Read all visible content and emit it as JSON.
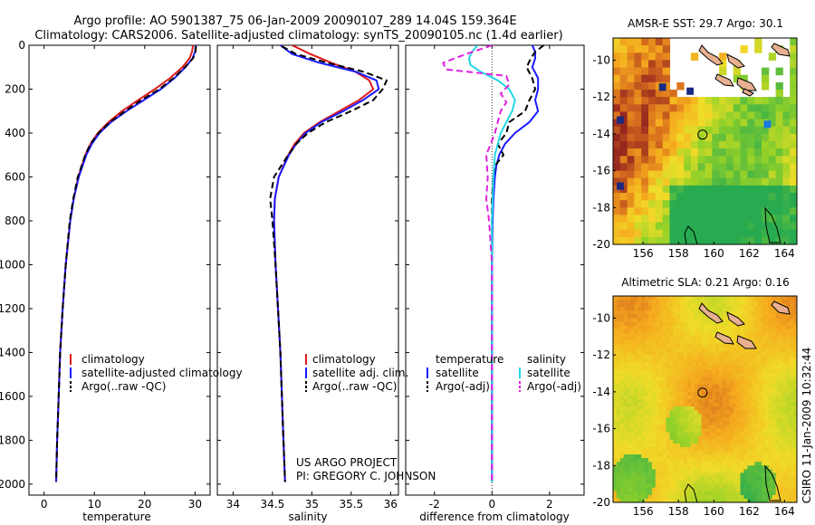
{
  "header": {
    "line1": "Argo profile: AO 5901387_75 06-Jan-2009 20090107_289 14.04S 159.364E",
    "line2": "Climatology: CARS2006. Satellite-adjusted climatology: synTS_20090105.nc (1.4d earlier)"
  },
  "credit": {
    "line1": "US ARGO PROJECT",
    "line2": "PI: GREGORY C. JOHNSON"
  },
  "stamp": "CSIRO 11-Jan-2009 10:32:44",
  "colors": {
    "climatology": "#e01a1a",
    "satellite": "#1a1aff",
    "argo": "#000000",
    "sal_satellite": "#22d8e8",
    "sal_argo": "#e020e0"
  },
  "chart_data": [
    {
      "type": "line",
      "xlabel": "temperature",
      "xlim": [
        -3,
        33
      ],
      "ylim": [
        2050,
        0
      ],
      "xticks": [
        0,
        10,
        20,
        30
      ],
      "yticks": [
        0,
        200,
        400,
        600,
        800,
        1000,
        1200,
        1400,
        1600,
        1800,
        2000
      ],
      "legend": [
        "climatology",
        "satellite-adjusted climatology",
        "Argo(..raw -QC)"
      ],
      "legend_position": "lower-center",
      "series": [
        {
          "name": "climatology",
          "style": "solid",
          "color": "#e01a1a",
          "depth": [
            0,
            30,
            60,
            100,
            150,
            200,
            250,
            300,
            350,
            400,
            450,
            500,
            600,
            700,
            800,
            1000,
            1200,
            1400,
            1600,
            1800,
            1990
          ],
          "values": [
            29.6,
            29.4,
            28.9,
            27.5,
            25.0,
            22.0,
            18.7,
            15.5,
            12.8,
            10.7,
            9.2,
            8.2,
            6.8,
            5.9,
            5.2,
            4.3,
            3.7,
            3.2,
            2.9,
            2.6,
            2.4
          ]
        },
        {
          "name": "satellite-adjusted climatology",
          "style": "solid",
          "color": "#1a1aff",
          "depth": [
            0,
            30,
            60,
            100,
            150,
            200,
            250,
            300,
            350,
            400,
            450,
            500,
            600,
            700,
            800,
            1000,
            1200,
            1400,
            1600,
            1800,
            1990
          ],
          "values": [
            30.2,
            30.0,
            29.5,
            28.1,
            25.9,
            23.2,
            19.8,
            16.4,
            13.3,
            11.0,
            9.5,
            8.4,
            6.9,
            5.9,
            5.2,
            4.3,
            3.7,
            3.2,
            2.9,
            2.6,
            2.4
          ]
        },
        {
          "name": "Argo(..raw -QC)",
          "style": "dashed",
          "color": "#000000",
          "depth": [
            5,
            30,
            60,
            100,
            150,
            200,
            250,
            300,
            350,
            400,
            450,
            500,
            600,
            700,
            800,
            1000,
            1200,
            1400,
            1600,
            1800,
            1990
          ],
          "values": [
            30.2,
            30.1,
            29.6,
            28.0,
            25.7,
            22.9,
            19.3,
            16.1,
            13.1,
            10.8,
            9.2,
            8.2,
            6.7,
            5.8,
            5.1,
            4.3,
            3.7,
            3.2,
            2.9,
            2.6,
            2.4
          ]
        }
      ]
    },
    {
      "type": "line",
      "xlabel": "salinity",
      "xlim": [
        33.8,
        36.1
      ],
      "ylim": [
        2050,
        0
      ],
      "xticks": [
        34,
        34.5,
        35,
        35.5,
        36
      ],
      "legend": [
        "climatology",
        "satellite adj. clim.",
        "Argo(..raw -QC)"
      ],
      "legend_position": "lower-center",
      "series": [
        {
          "name": "climatology",
          "style": "solid",
          "color": "#e01a1a",
          "depth": [
            0,
            40,
            80,
            120,
            160,
            200,
            250,
            300,
            350,
            400,
            450,
            500,
            600,
            700,
            800,
            1000,
            1200,
            1400,
            1600,
            1800,
            1990
          ],
          "values": [
            34.75,
            34.98,
            35.25,
            35.55,
            35.73,
            35.78,
            35.6,
            35.35,
            35.1,
            34.9,
            34.78,
            34.7,
            34.58,
            34.53,
            34.52,
            34.54,
            34.57,
            34.6,
            34.62,
            34.64,
            34.66
          ]
        },
        {
          "name": "satellite adj. clim.",
          "style": "solid",
          "color": "#1a1aff",
          "depth": [
            0,
            40,
            80,
            120,
            160,
            200,
            250,
            300,
            350,
            400,
            450,
            500,
            600,
            700,
            800,
            1000,
            1200,
            1400,
            1600,
            1800,
            1990
          ],
          "values": [
            34.6,
            34.75,
            35.1,
            35.55,
            35.82,
            35.85,
            35.65,
            35.4,
            35.12,
            34.92,
            34.8,
            34.71,
            34.58,
            34.53,
            34.52,
            34.54,
            34.57,
            34.6,
            34.62,
            34.64,
            34.66
          ]
        },
        {
          "name": "Argo(..raw -QC)",
          "style": "dashed",
          "color": "#000000",
          "depth": [
            5,
            40,
            80,
            120,
            160,
            200,
            250,
            300,
            350,
            400,
            450,
            500,
            600,
            700,
            800,
            1000,
            1200,
            1400,
            1600,
            1800,
            1990
          ],
          "values": [
            34.62,
            34.8,
            35.2,
            35.65,
            35.95,
            35.9,
            35.78,
            35.5,
            35.18,
            34.95,
            34.8,
            34.7,
            34.52,
            34.47,
            34.5,
            34.54,
            34.57,
            34.6,
            34.62,
            34.64,
            34.66
          ]
        }
      ]
    },
    {
      "type": "line",
      "xlabel": "difference from climatology",
      "xlim": [
        -3,
        3.2
      ],
      "ylim": [
        2050,
        0
      ],
      "xticks": [
        -2,
        0,
        2
      ],
      "legend_title_left": "temperature",
      "legend_title_right": "salinity",
      "legend": [
        "satellite",
        "Argo(-adj)",
        "satellite",
        "Argo(-adj)"
      ],
      "legend_position": "lower-center",
      "series": [
        {
          "name": "temperature satellite",
          "style": "solid",
          "color": "#1a1aff",
          "depth": [
            0,
            30,
            60,
            100,
            150,
            200,
            250,
            300,
            350,
            400,
            450,
            500,
            550,
            600,
            700,
            800,
            1000,
            1200,
            1500,
            1990
          ],
          "values": [
            1.4,
            1.5,
            1.5,
            1.4,
            1.6,
            1.6,
            1.5,
            1.6,
            1.3,
            0.8,
            0.45,
            0.25,
            0.15,
            0.1,
            0.05,
            0.02,
            0.0,
            0.0,
            0.0,
            0.0
          ]
        },
        {
          "name": "temperature Argo(-adj)",
          "style": "dashed",
          "color": "#000000",
          "depth": [
            0,
            30,
            60,
            100,
            150,
            200,
            250,
            300,
            350,
            400,
            450,
            500,
            550,
            600,
            700,
            800,
            1000,
            1500,
            1990
          ],
          "values": [
            1.8,
            1.5,
            1.35,
            1.2,
            1.4,
            1.5,
            1.3,
            1.15,
            0.6,
            0.5,
            0.2,
            0.4,
            0.1,
            0.05,
            0.0,
            0.0,
            0.0,
            0.0,
            0.0
          ]
        },
        {
          "name": "salinity satellite",
          "style": "solid",
          "color": "#22d8e8",
          "depth": [
            0,
            30,
            60,
            90,
            120,
            160,
            200,
            250,
            300,
            350,
            400,
            450,
            500,
            600,
            800,
            1000,
            1500,
            1990
          ],
          "values": [
            -0.5,
            -0.7,
            -0.8,
            -0.75,
            -0.4,
            0.2,
            0.6,
            0.8,
            0.7,
            0.5,
            0.3,
            0.2,
            0.1,
            0.05,
            0.0,
            0.0,
            0.0,
            0.0
          ]
        },
        {
          "name": "salinity Argo(-adj)",
          "style": "dashed",
          "color": "#e020e0",
          "depth": [
            0,
            40,
            80,
            110,
            140,
            180,
            220,
            260,
            300,
            400,
            500,
            600,
            700,
            800,
            900,
            1000,
            1500,
            1990
          ],
          "values": [
            0.0,
            -0.9,
            -1.7,
            -1.6,
            0.5,
            0.6,
            0.3,
            0.5,
            0.3,
            0.1,
            -0.2,
            -0.15,
            -0.2,
            -0.1,
            -0.05,
            0.0,
            0.0,
            0.0
          ]
        }
      ]
    },
    {
      "type": "heatmap",
      "title": "AMSR-E SST: 29.7 Argo: 30.1",
      "xlim": [
        154.3,
        164.7
      ],
      "ylim": [
        -20,
        -8.8
      ],
      "xticks": [
        156,
        158,
        160,
        162,
        164
      ],
      "yticks": [
        -10,
        -12,
        -14,
        -16,
        -18,
        -20
      ],
      "marker": {
        "lon": 159.364,
        "lat": -14.04
      }
    },
    {
      "type": "heatmap",
      "title": "Altimetric SLA: 0.21 Argo: 0.16",
      "xlim": [
        154.3,
        164.7
      ],
      "ylim": [
        -20,
        -8.8
      ],
      "xticks": [
        156,
        158,
        160,
        162,
        164
      ],
      "yticks": [
        -10,
        -12,
        -14,
        -16,
        -18,
        -20
      ],
      "marker": {
        "lon": 159.364,
        "lat": -14.04
      }
    }
  ]
}
